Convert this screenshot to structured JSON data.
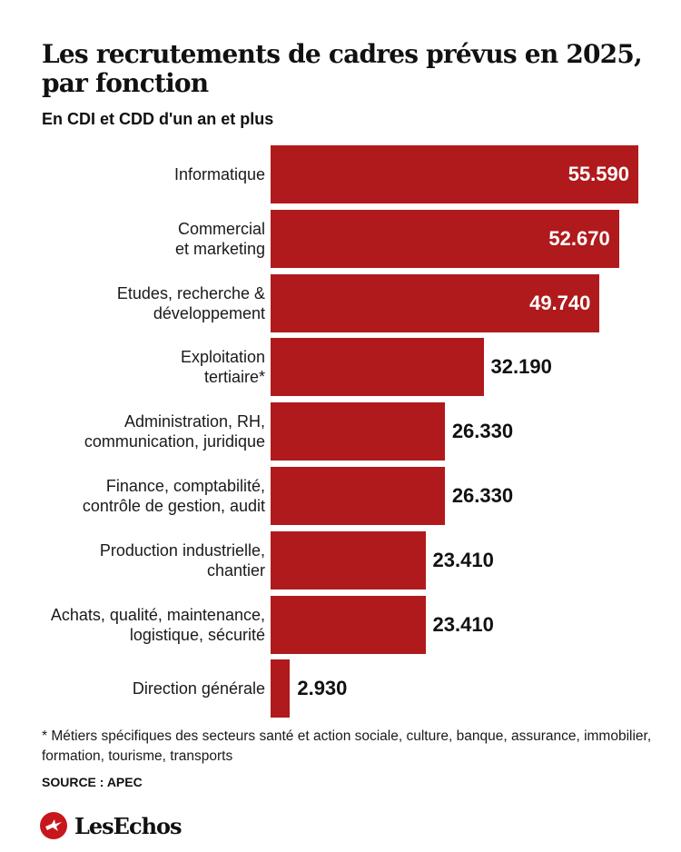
{
  "title": "Les recrutements de cadres prévus en 2025, par fonction",
  "subtitle": "En CDI et CDD d'un an et plus",
  "chart_data": {
    "type": "bar",
    "orientation": "horizontal",
    "categories": [
      "Informatique",
      "Commercial\net marketing",
      "Etudes, recherche &\ndéveloppement",
      "Exploitation\ntertiaire*",
      "Administration, RH,\ncommunication, juridique",
      "Finance, comptabilité,\ncontrôle de gestion, audit",
      "Production industrielle,\nchantier",
      "Achats, qualité, maintenance,\nlogistique, sécurité",
      "Direction générale"
    ],
    "values": [
      55590,
      52670,
      49740,
      32190,
      26330,
      26330,
      23410,
      23410,
      2930
    ],
    "value_labels": [
      "55.590",
      "52.670",
      "49.740",
      "32.190",
      "26.330",
      "26.330",
      "23.410",
      "23.410",
      "2.930"
    ],
    "bar_color": "#b01a1c",
    "grid": false,
    "legend": "none"
  },
  "footnote": "* Métiers spécifiques des secteurs santé et action sociale, culture, banque, assurance, immobilier, formation, tourisme, transports",
  "source": "SOURCE : APEC",
  "logo_text": "LesEchos",
  "colors": {
    "accent": "#b01a1c",
    "logo": "#c8161d"
  }
}
